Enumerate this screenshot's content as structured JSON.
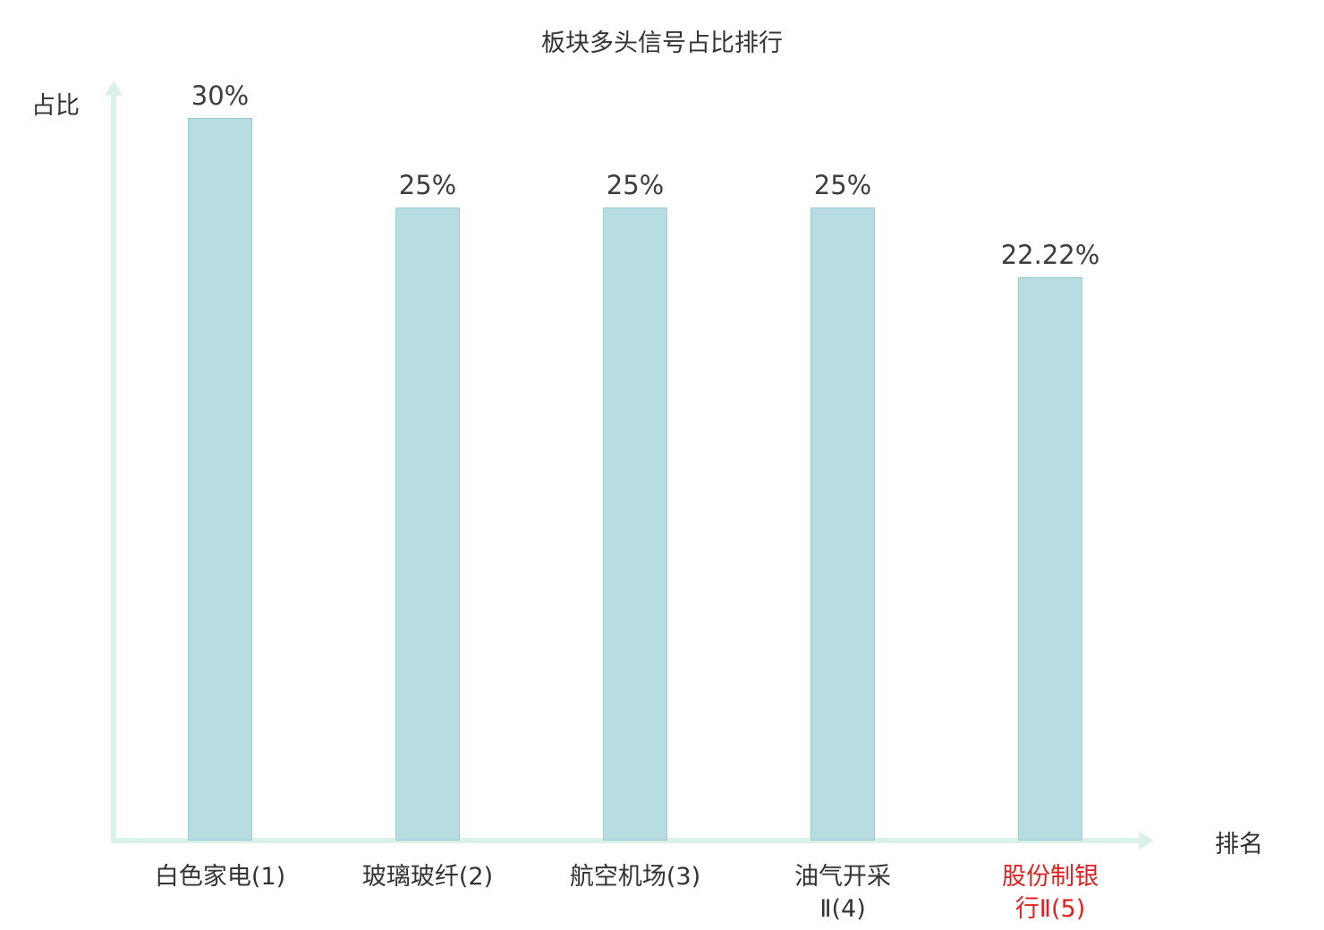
{
  "chart_data": {
    "type": "bar",
    "title": "板块多头信号占比排行",
    "xlabel": "排名",
    "ylabel": "占比",
    "categories": [
      "白色家电(1)",
      "玻璃玻纤(2)",
      "航空机场(3)",
      "油气开采Ⅱ(4)",
      "股份制银行Ⅱ(5)"
    ],
    "category_display": [
      "白色家电(1)",
      "玻璃玻纤(2)",
      "航空机场(3)",
      "油气开采\nⅡ(4)",
      "股份制银\n行Ⅱ(5)"
    ],
    "values": [
      30,
      25,
      25,
      25,
      22.22
    ],
    "value_labels": [
      "30%",
      "25%",
      "25%",
      "25%",
      "22.22%"
    ],
    "ylim": [
      0,
      30
    ],
    "grid": false,
    "legend": false,
    "highlight_index": 4,
    "colors": {
      "bar_fill": "#b7dde3",
      "bar_border": "#9bccd3",
      "axis": "#d9f1e9",
      "text": "#3d3d3d",
      "highlight_label": "#e02020"
    }
  }
}
